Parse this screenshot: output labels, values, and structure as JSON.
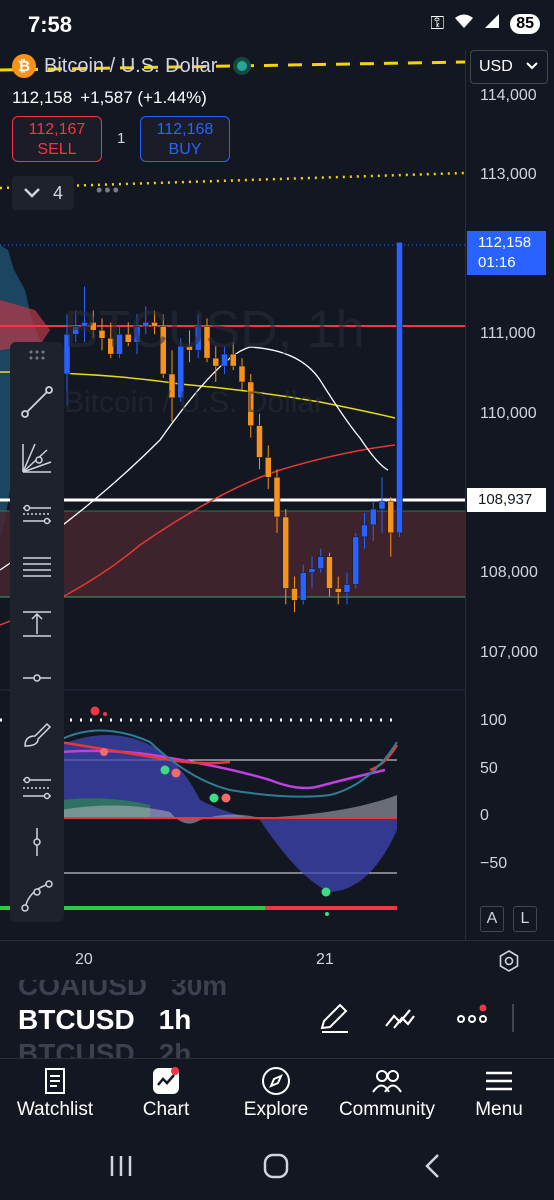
{
  "status": {
    "time": "7:58",
    "battery": "85"
  },
  "header": {
    "symbol_name": "Bitcoin / U.S. Dollar",
    "last_price": "112,158",
    "change": "+1,587 (+1.44%)",
    "sell_price": "112,167",
    "sell_label": "SELL",
    "quantity": "1",
    "buy_price": "112,168",
    "buy_label": "BUY",
    "indicator_count": "4",
    "currency": "USD"
  },
  "watermark": {
    "symbol": "BTCUSD, 1h",
    "name": "Bitcoin / U.S. Dollar"
  },
  "price_axis": {
    "labels": [
      "114,000",
      "113,000",
      "111,000",
      "110,000",
      "108,000",
      "107,000"
    ],
    "last_price_tag": {
      "price": "112,158",
      "countdown": "01:16"
    },
    "level_tag": "108,937"
  },
  "indicator_axis": {
    "labels": [
      "100",
      "50",
      "0",
      "−50"
    ],
    "auto_label": "A",
    "log_label": "L"
  },
  "time_axis": {
    "labels": [
      "20",
      "21"
    ]
  },
  "symbol_picker": {
    "prev": {
      "symbol": "COAIUSD",
      "timeframe": "30m"
    },
    "current": {
      "symbol": "BTCUSD",
      "timeframe": "1h"
    },
    "next": {
      "symbol": "BTCUSD",
      "timeframe": "2h"
    }
  },
  "nav": {
    "items": [
      {
        "label": "Watchlist"
      },
      {
        "label": "Chart"
      },
      {
        "label": "Explore"
      },
      {
        "label": "Community"
      },
      {
        "label": "Menu"
      }
    ]
  },
  "colors": {
    "background": "#131722",
    "up": "#2962ff",
    "down": "#f7931a",
    "sell": "#f23645",
    "buy": "#2962ff"
  },
  "chart_data": {
    "type": "candlestick",
    "ylim": [
      106700,
      114300
    ],
    "candles": [
      {
        "o": 110500,
        "h": 111250,
        "l": 110100,
        "c": 111000
      },
      {
        "o": 111000,
        "h": 111300,
        "l": 110900,
        "c": 111100
      },
      {
        "o": 111100,
        "h": 111600,
        "l": 110900,
        "c": 111150
      },
      {
        "o": 111150,
        "h": 111300,
        "l": 110950,
        "c": 111050
      },
      {
        "o": 111050,
        "h": 111200,
        "l": 110800,
        "c": 110950
      },
      {
        "o": 110950,
        "h": 111150,
        "l": 110700,
        "c": 110750
      },
      {
        "o": 110750,
        "h": 111100,
        "l": 110700,
        "c": 111000
      },
      {
        "o": 111000,
        "h": 111150,
        "l": 110850,
        "c": 110900
      },
      {
        "o": 110900,
        "h": 111250,
        "l": 110750,
        "c": 111100
      },
      {
        "o": 111100,
        "h": 111350,
        "l": 111000,
        "c": 111150
      },
      {
        "o": 111150,
        "h": 111300,
        "l": 111000,
        "c": 111100
      },
      {
        "o": 111100,
        "h": 111250,
        "l": 110450,
        "c": 110500
      },
      {
        "o": 110500,
        "h": 110800,
        "l": 109900,
        "c": 110200
      },
      {
        "o": 110200,
        "h": 110950,
        "l": 110150,
        "c": 110850
      },
      {
        "o": 110850,
        "h": 111050,
        "l": 110650,
        "c": 110800
      },
      {
        "o": 110800,
        "h": 111250,
        "l": 110700,
        "c": 111100
      },
      {
        "o": 111100,
        "h": 111200,
        "l": 110650,
        "c": 110700
      },
      {
        "o": 110700,
        "h": 110850,
        "l": 110400,
        "c": 110600
      },
      {
        "o": 110600,
        "h": 110850,
        "l": 110500,
        "c": 110750
      },
      {
        "o": 110750,
        "h": 110900,
        "l": 110550,
        "c": 110600
      },
      {
        "o": 110600,
        "h": 110700,
        "l": 110300,
        "c": 110400
      },
      {
        "o": 110400,
        "h": 110500,
        "l": 109700,
        "c": 109850
      },
      {
        "o": 109850,
        "h": 110000,
        "l": 109300,
        "c": 109450
      },
      {
        "o": 109450,
        "h": 109600,
        "l": 109050,
        "c": 109200
      },
      {
        "o": 109200,
        "h": 109300,
        "l": 108500,
        "c": 108700
      },
      {
        "o": 108700,
        "h": 108800,
        "l": 107600,
        "c": 107800
      },
      {
        "o": 107800,
        "h": 107950,
        "l": 107500,
        "c": 107650
      },
      {
        "o": 107650,
        "h": 108100,
        "l": 107600,
        "c": 108000
      },
      {
        "o": 108000,
        "h": 108200,
        "l": 107800,
        "c": 108050
      },
      {
        "o": 108050,
        "h": 108300,
        "l": 108000,
        "c": 108200
      },
      {
        "o": 108200,
        "h": 108250,
        "l": 107700,
        "c": 107800
      },
      {
        "o": 107800,
        "h": 107950,
        "l": 107600,
        "c": 107750
      },
      {
        "o": 107750,
        "h": 108000,
        "l": 107600,
        "c": 107850
      },
      {
        "o": 107850,
        "h": 108500,
        "l": 107800,
        "c": 108450
      },
      {
        "o": 108450,
        "h": 108750,
        "l": 108300,
        "c": 108600
      },
      {
        "o": 108600,
        "h": 108900,
        "l": 108400,
        "c": 108800
      },
      {
        "o": 108800,
        "h": 109200,
        "l": 108500,
        "c": 108900
      },
      {
        "o": 108900,
        "h": 108950,
        "l": 108200,
        "c": 108500
      },
      {
        "o": 108500,
        "h": 112150,
        "l": 108450,
        "c": 112158
      }
    ]
  }
}
